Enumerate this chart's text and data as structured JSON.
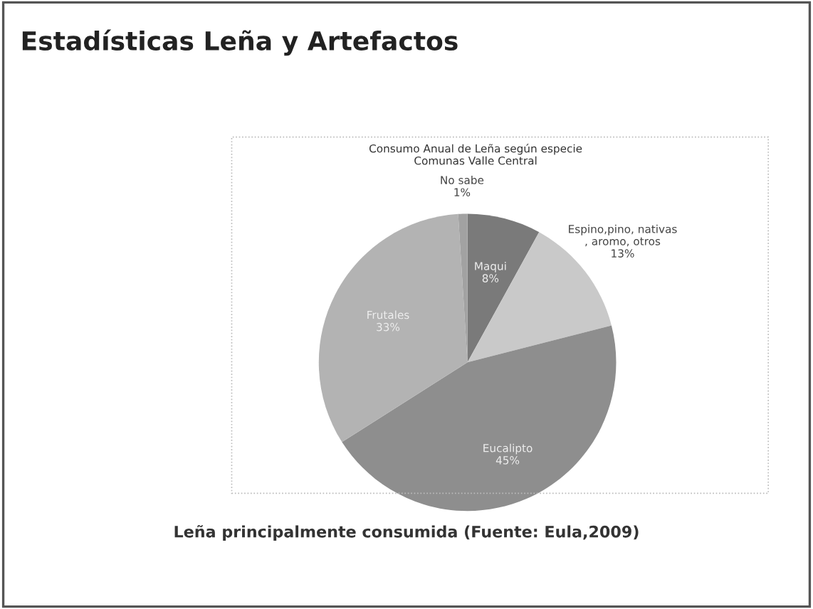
{
  "chart_data": {
    "type": "pie",
    "title": "Estadísticas Leña y Artefactos",
    "subtitle": "Consumo Anual de Leña según especie\nComunas Valle Central",
    "categories": [
      "Maqui",
      "Espino,pino, nativas\n, aromo, otros",
      "Eucalipto",
      "Frutales",
      "No sabe"
    ],
    "values": [
      8,
      13,
      45,
      33,
      1
    ],
    "colors": [
      "#7a7a7a",
      "#c9c9c9",
      "#8e8e8e",
      "#b3b3b3",
      "#a2a2a2"
    ],
    "value_labels": [
      "8%",
      "13%",
      "45%",
      "33%",
      "1%"
    ],
    "annotations": [
      "Leña principalmente consumida (Fuente: Eula,2009)"
    ]
  }
}
